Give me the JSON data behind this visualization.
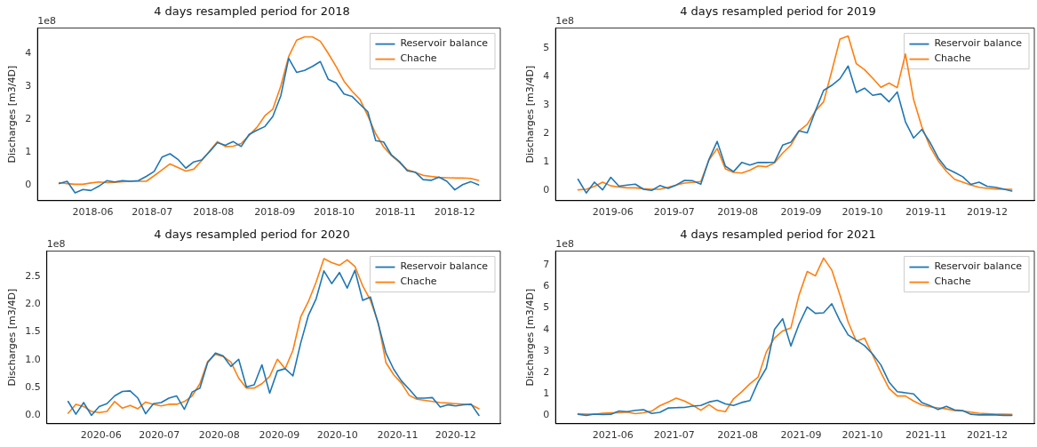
{
  "chart_data": [
    {
      "type": "line",
      "title": "4 days resampled period for 2018",
      "ylabel": "Discharges [m3/4D]",
      "annotations": [
        "1e8"
      ],
      "legend": "top right",
      "grid": false,
      "marker": "none",
      "line_style": "solid",
      "x": [
        "2018-05-15",
        "2018-05-19",
        "2018-05-23",
        "2018-05-27",
        "2018-05-31",
        "2018-06-04",
        "2018-06-08",
        "2018-06-12",
        "2018-06-16",
        "2018-06-20",
        "2018-06-24",
        "2018-06-28",
        "2018-07-02",
        "2018-07-06",
        "2018-07-10",
        "2018-07-14",
        "2018-07-18",
        "2018-07-22",
        "2018-07-26",
        "2018-07-30",
        "2018-08-03",
        "2018-08-07",
        "2018-08-11",
        "2018-08-15",
        "2018-08-19",
        "2018-08-23",
        "2018-08-27",
        "2018-08-31",
        "2018-09-04",
        "2018-09-08",
        "2018-09-12",
        "2018-09-16",
        "2018-09-20",
        "2018-09-24",
        "2018-09-28",
        "2018-10-02",
        "2018-10-06",
        "2018-10-10",
        "2018-10-14",
        "2018-10-18",
        "2018-10-22",
        "2018-10-26",
        "2018-10-30",
        "2018-11-03",
        "2018-11-07",
        "2018-11-11",
        "2018-11-15",
        "2018-11-19",
        "2018-11-23",
        "2018-11-27",
        "2018-12-01",
        "2018-12-05",
        "2018-12-09",
        "2018-12-13"
      ],
      "xlim": [
        "2018-05-04",
        "2018-12-24"
      ],
      "xticks": [
        {
          "value": "2018-06-01",
          "label": "2018-06"
        },
        {
          "value": "2018-07-01",
          "label": "2018-07"
        },
        {
          "value": "2018-08-01",
          "label": "2018-08"
        },
        {
          "value": "2018-09-01",
          "label": "2018-09"
        },
        {
          "value": "2018-10-01",
          "label": "2018-10"
        },
        {
          "value": "2018-11-01",
          "label": "2018-11"
        },
        {
          "value": "2018-12-01",
          "label": "2018-12"
        }
      ],
      "ylim": [
        -0.49,
        4.77
      ],
      "yticks": [
        0,
        1,
        2,
        3,
        4
      ],
      "series": [
        {
          "name": "Reservoir balance",
          "color": "#1f77b4",
          "values": [
            0.03,
            0.1,
            -0.25,
            -0.15,
            -0.18,
            -0.05,
            0.12,
            0.08,
            0.12,
            0.1,
            0.12,
            0.25,
            0.4,
            0.84,
            0.94,
            0.77,
            0.5,
            0.69,
            0.75,
            1.0,
            1.28,
            1.2,
            1.31,
            1.16,
            1.53,
            1.66,
            1.77,
            2.08,
            2.7,
            3.85,
            3.42,
            3.48,
            3.6,
            3.75,
            3.21,
            3.1,
            2.76,
            2.69,
            2.45,
            2.22,
            1.34,
            1.3,
            0.9,
            0.7,
            0.42,
            0.38,
            0.15,
            0.13,
            0.23,
            0.1,
            -0.16,
            0.0,
            0.09,
            -0.01
          ]
        },
        {
          "name": "Chache",
          "color": "#ff7f0e",
          "values": [
            0.06,
            0.03,
            0.01,
            0.01,
            0.05,
            0.08,
            0.06,
            0.07,
            0.09,
            0.1,
            0.1,
            0.1,
            0.27,
            0.45,
            0.63,
            0.52,
            0.41,
            0.47,
            0.73,
            1.02,
            1.31,
            1.16,
            1.17,
            1.25,
            1.5,
            1.75,
            2.1,
            2.3,
            3.0,
            3.9,
            4.4,
            4.5,
            4.5,
            4.37,
            4.0,
            3.6,
            3.15,
            2.85,
            2.6,
            2.1,
            1.55,
            1.15,
            0.88,
            0.68,
            0.45,
            0.37,
            0.28,
            0.25,
            0.22,
            0.21,
            0.2,
            0.2,
            0.19,
            0.13
          ]
        }
      ]
    },
    {
      "type": "line",
      "title": "4 days resampled period for 2019",
      "ylabel": "Discharges [m3/4D]",
      "annotations": [
        "1e8"
      ],
      "legend": "top right",
      "grid": false,
      "marker": "none",
      "line_style": "solid",
      "x": [
        "2019-05-15",
        "2019-05-19",
        "2019-05-23",
        "2019-05-27",
        "2019-05-31",
        "2019-06-04",
        "2019-06-08",
        "2019-06-12",
        "2019-06-16",
        "2019-06-20",
        "2019-06-24",
        "2019-06-28",
        "2019-07-02",
        "2019-07-06",
        "2019-07-10",
        "2019-07-14",
        "2019-07-18",
        "2019-07-22",
        "2019-07-26",
        "2019-07-30",
        "2019-08-03",
        "2019-08-07",
        "2019-08-11",
        "2019-08-15",
        "2019-08-19",
        "2019-08-23",
        "2019-08-27",
        "2019-08-31",
        "2019-09-04",
        "2019-09-08",
        "2019-09-12",
        "2019-09-16",
        "2019-09-20",
        "2019-09-24",
        "2019-09-28",
        "2019-10-02",
        "2019-10-06",
        "2019-10-10",
        "2019-10-14",
        "2019-10-18",
        "2019-10-22",
        "2019-10-26",
        "2019-10-30",
        "2019-11-03",
        "2019-11-07",
        "2019-11-11",
        "2019-11-15",
        "2019-11-19",
        "2019-11-23",
        "2019-11-27",
        "2019-12-01",
        "2019-12-05",
        "2019-12-09",
        "2019-12-13"
      ],
      "xlim": [
        "2019-05-04",
        "2019-12-24"
      ],
      "xticks": [
        {
          "value": "2019-06-01",
          "label": "2019-06"
        },
        {
          "value": "2019-07-01",
          "label": "2019-07"
        },
        {
          "value": "2019-08-01",
          "label": "2019-08"
        },
        {
          "value": "2019-09-01",
          "label": "2019-09"
        },
        {
          "value": "2019-10-01",
          "label": "2019-10"
        },
        {
          "value": "2019-11-01",
          "label": "2019-11"
        },
        {
          "value": "2019-12-01",
          "label": "2019-12"
        }
      ],
      "ylim": [
        -0.35,
        5.71
      ],
      "yticks": [
        0,
        1,
        2,
        3,
        4,
        5
      ],
      "series": [
        {
          "name": "Reservoir balance",
          "color": "#1f77b4",
          "values": [
            0.4,
            -0.08,
            0.3,
            0.03,
            0.47,
            0.16,
            0.2,
            0.23,
            0.05,
            0.01,
            0.18,
            0.08,
            0.2,
            0.36,
            0.35,
            0.23,
            1.1,
            1.73,
            0.86,
            0.67,
            0.99,
            0.9,
            0.99,
            0.99,
            1.0,
            1.6,
            1.7,
            2.1,
            2.03,
            2.8,
            3.52,
            3.7,
            3.93,
            4.38,
            3.45,
            3.6,
            3.35,
            3.4,
            3.12,
            3.47,
            2.42,
            1.85,
            2.15,
            1.7,
            1.15,
            0.78,
            0.64,
            0.49,
            0.22,
            0.3,
            0.15,
            0.12,
            0.06,
            -0.01
          ]
        },
        {
          "name": "Chache",
          "color": "#ff7f0e",
          "values": [
            0.03,
            0.05,
            0.15,
            0.3,
            0.17,
            0.13,
            0.1,
            0.1,
            0.07,
            0.05,
            0.05,
            0.12,
            0.2,
            0.27,
            0.29,
            0.32,
            1.08,
            1.48,
            0.77,
            0.64,
            0.62,
            0.72,
            0.87,
            0.84,
            0.98,
            1.32,
            1.6,
            2.1,
            2.33,
            2.8,
            3.12,
            4.2,
            5.32,
            5.43,
            4.46,
            4.25,
            3.95,
            3.63,
            3.78,
            3.62,
            4.8,
            3.2,
            2.25,
            1.55,
            1.05,
            0.68,
            0.4,
            0.3,
            0.2,
            0.12,
            0.08,
            0.06,
            0.05,
            0.05
          ]
        }
      ]
    },
    {
      "type": "line",
      "title": "4 days resampled period for 2020",
      "ylabel": "Discharges [m3/4D]",
      "annotations": [
        "1e8"
      ],
      "legend": "top right",
      "grid": false,
      "marker": "none",
      "line_style": "solid",
      "x": [
        "2020-05-15",
        "2020-05-19",
        "2020-05-23",
        "2020-05-27",
        "2020-05-31",
        "2020-06-04",
        "2020-06-08",
        "2020-06-12",
        "2020-06-16",
        "2020-06-20",
        "2020-06-24",
        "2020-06-28",
        "2020-07-02",
        "2020-07-06",
        "2020-07-10",
        "2020-07-14",
        "2020-07-18",
        "2020-07-22",
        "2020-07-26",
        "2020-07-30",
        "2020-08-03",
        "2020-08-07",
        "2020-08-11",
        "2020-08-15",
        "2020-08-19",
        "2020-08-23",
        "2020-08-27",
        "2020-08-31",
        "2020-09-04",
        "2020-09-08",
        "2020-09-12",
        "2020-09-16",
        "2020-09-20",
        "2020-09-24",
        "2020-09-28",
        "2020-10-02",
        "2020-10-06",
        "2020-10-10",
        "2020-10-14",
        "2020-10-18",
        "2020-10-22",
        "2020-10-26",
        "2020-10-30",
        "2020-11-03",
        "2020-11-07",
        "2020-11-11",
        "2020-11-15",
        "2020-11-19",
        "2020-11-23",
        "2020-11-27",
        "2020-12-01",
        "2020-12-05",
        "2020-12-09",
        "2020-12-13"
      ],
      "xlim": [
        "2020-05-04",
        "2020-12-24"
      ],
      "xticks": [
        {
          "value": "2020-06-01",
          "label": "2020-06"
        },
        {
          "value": "2020-07-01",
          "label": "2020-07"
        },
        {
          "value": "2020-08-01",
          "label": "2020-08"
        },
        {
          "value": "2020-09-01",
          "label": "2020-09"
        },
        {
          "value": "2020-10-01",
          "label": "2020-10"
        },
        {
          "value": "2020-11-01",
          "label": "2020-11"
        },
        {
          "value": "2020-12-01",
          "label": "2020-12"
        }
      ],
      "ylim": [
        -0.15,
        2.955
      ],
      "yticks": [
        {
          "value": 0,
          "label": "0.0"
        },
        {
          "value": 0.5,
          "label": "0.5"
        },
        {
          "value": 1,
          "label": "1.0"
        },
        {
          "value": 1.5,
          "label": "1.5"
        },
        {
          "value": 2,
          "label": "2.0"
        },
        {
          "value": 2.5,
          "label": "2.5"
        }
      ],
      "series": [
        {
          "name": "Reservoir balance",
          "color": "#1f77b4",
          "values": [
            0.25,
            0.02,
            0.23,
            0.0,
            0.16,
            0.21,
            0.35,
            0.43,
            0.44,
            0.31,
            0.03,
            0.21,
            0.23,
            0.31,
            0.35,
            0.11,
            0.42,
            0.49,
            0.95,
            1.12,
            1.07,
            0.88,
            1.01,
            0.51,
            0.55,
            0.91,
            0.4,
            0.8,
            0.84,
            0.71,
            1.3,
            1.8,
            2.1,
            2.6,
            2.37,
            2.57,
            2.29,
            2.61,
            2.07,
            2.13,
            1.65,
            1.12,
            0.83,
            0.62,
            0.47,
            0.31,
            0.31,
            0.32,
            0.15,
            0.19,
            0.17,
            0.19,
            0.2,
            0.0
          ]
        },
        {
          "name": "Chache",
          "color": "#ff7f0e",
          "values": [
            0.04,
            0.2,
            0.16,
            0.07,
            0.05,
            0.07,
            0.25,
            0.13,
            0.18,
            0.12,
            0.24,
            0.2,
            0.17,
            0.2,
            0.2,
            0.25,
            0.35,
            0.57,
            0.97,
            1.1,
            1.06,
            0.96,
            0.67,
            0.49,
            0.49,
            0.57,
            0.7,
            1.01,
            0.84,
            1.17,
            1.77,
            2.05,
            2.4,
            2.82,
            2.75,
            2.7,
            2.8,
            2.68,
            2.33,
            2.07,
            1.67,
            0.95,
            0.73,
            0.58,
            0.36,
            0.29,
            0.27,
            0.25,
            0.23,
            0.22,
            0.21,
            0.2,
            0.19,
            0.12
          ]
        }
      ]
    },
    {
      "type": "line",
      "title": "4 days resampled period for 2021",
      "ylabel": "Discharges [m3/4D]",
      "annotations": [
        "1e8"
      ],
      "legend": "top right",
      "grid": false,
      "marker": "none",
      "line_style": "solid",
      "x": [
        "2021-05-15",
        "2021-05-19",
        "2021-05-23",
        "2021-05-27",
        "2021-05-31",
        "2021-06-04",
        "2021-06-08",
        "2021-06-12",
        "2021-06-16",
        "2021-06-20",
        "2021-06-24",
        "2021-06-28",
        "2021-07-02",
        "2021-07-06",
        "2021-07-10",
        "2021-07-14",
        "2021-07-18",
        "2021-07-22",
        "2021-07-26",
        "2021-07-30",
        "2021-08-03",
        "2021-08-07",
        "2021-08-11",
        "2021-08-15",
        "2021-08-19",
        "2021-08-23",
        "2021-08-27",
        "2021-08-31",
        "2021-09-04",
        "2021-09-08",
        "2021-09-12",
        "2021-09-16",
        "2021-09-20",
        "2021-09-24",
        "2021-09-28",
        "2021-10-02",
        "2021-10-06",
        "2021-10-10",
        "2021-10-14",
        "2021-10-18",
        "2021-10-22",
        "2021-10-26",
        "2021-10-30",
        "2021-11-03",
        "2021-11-07",
        "2021-11-11",
        "2021-11-15",
        "2021-11-19",
        "2021-11-23",
        "2021-11-27",
        "2021-12-01",
        "2021-12-05",
        "2021-12-09",
        "2021-12-13"
      ],
      "xlim": [
        "2021-05-04",
        "2021-12-24"
      ],
      "xticks": [
        {
          "value": "2021-06-01",
          "label": "2021-06"
        },
        {
          "value": "2021-07-01",
          "label": "2021-07"
        },
        {
          "value": "2021-08-01",
          "label": "2021-08"
        },
        {
          "value": "2021-09-01",
          "label": "2021-09"
        },
        {
          "value": "2021-10-01",
          "label": "2021-10"
        },
        {
          "value": "2021-11-01",
          "label": "2021-11"
        },
        {
          "value": "2021-12-01",
          "label": "2021-12"
        }
      ],
      "ylim": [
        -0.39,
        7.65
      ],
      "yticks": [
        0,
        1,
        2,
        3,
        4,
        5,
        6,
        7
      ],
      "series": [
        {
          "name": "Reservoir balance",
          "color": "#1f77b4",
          "values": [
            0.05,
            0.0,
            0.06,
            0.04,
            0.05,
            0.2,
            0.17,
            0.23,
            0.26,
            0.09,
            0.14,
            0.34,
            0.36,
            0.37,
            0.43,
            0.46,
            0.62,
            0.7,
            0.53,
            0.46,
            0.6,
            0.69,
            1.55,
            2.2,
            4.0,
            4.5,
            3.23,
            4.25,
            5.05,
            4.75,
            4.78,
            5.2,
            4.4,
            3.75,
            3.5,
            3.25,
            2.85,
            2.35,
            1.55,
            1.1,
            1.05,
            1.0,
            0.6,
            0.45,
            0.27,
            0.42,
            0.25,
            0.22,
            0.05,
            0.02,
            0.03,
            0.02,
            0.0,
            0.0
          ]
        },
        {
          "name": "Chache",
          "color": "#ff7f0e",
          "values": [
            0.08,
            0.05,
            0.05,
            0.1,
            0.12,
            0.12,
            0.15,
            0.08,
            0.12,
            0.2,
            0.45,
            0.62,
            0.8,
            0.67,
            0.47,
            0.24,
            0.5,
            0.24,
            0.17,
            0.77,
            1.1,
            1.47,
            1.78,
            2.95,
            3.6,
            3.93,
            4.07,
            5.6,
            6.7,
            6.5,
            7.33,
            6.77,
            5.6,
            4.35,
            3.45,
            3.6,
            2.8,
            2.0,
            1.25,
            0.9,
            0.9,
            0.67,
            0.48,
            0.4,
            0.35,
            0.3,
            0.22,
            0.2,
            0.15,
            0.1,
            0.08,
            0.06,
            0.05,
            0.04
          ]
        }
      ]
    }
  ]
}
